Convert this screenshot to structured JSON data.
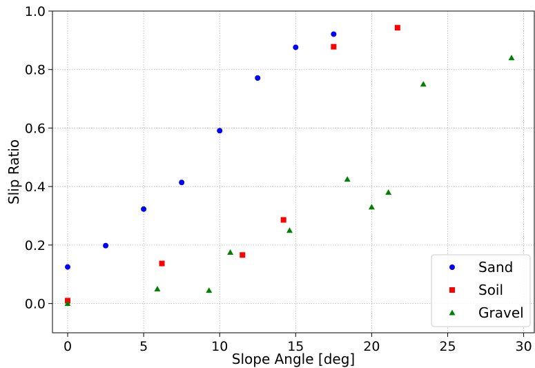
{
  "chart_data": {
    "type": "scatter",
    "title": "",
    "xlabel": "Slope Angle [deg]",
    "ylabel": "Slip Ratio",
    "xlim": [
      -1,
      30.7
    ],
    "ylim": [
      -0.1,
      1.0
    ],
    "xticks": [
      0,
      5,
      10,
      15,
      20,
      25,
      30
    ],
    "yticks": [
      0.0,
      0.2,
      0.4,
      0.6,
      0.8,
      1.0
    ],
    "xtick_labels": [
      "0",
      "5",
      "10",
      "15",
      "20",
      "25",
      "30"
    ],
    "ytick_labels": [
      "0.0",
      "0.2",
      "0.4",
      "0.6",
      "0.8",
      "1.0"
    ],
    "grid": true,
    "legend_position": "bottom-right",
    "series": [
      {
        "name": "Sand",
        "marker": "circle",
        "color": "#0000ff",
        "points": [
          {
            "x": 0,
            "y": 0.125
          },
          {
            "x": 2.5,
            "y": 0.198
          },
          {
            "x": 5,
            "y": 0.323
          },
          {
            "x": 7.5,
            "y": 0.414
          },
          {
            "x": 10,
            "y": 0.591
          },
          {
            "x": 12.5,
            "y": 0.771
          },
          {
            "x": 15,
            "y": 0.876
          },
          {
            "x": 17.5,
            "y": 0.921
          }
        ]
      },
      {
        "name": "Soil",
        "marker": "square",
        "color": "#ff0000",
        "points": [
          {
            "x": 0,
            "y": 0.01
          },
          {
            "x": 6.2,
            "y": 0.137
          },
          {
            "x": 11.5,
            "y": 0.166
          },
          {
            "x": 14.2,
            "y": 0.286
          },
          {
            "x": 17.5,
            "y": 0.878
          },
          {
            "x": 21.7,
            "y": 0.943
          }
        ]
      },
      {
        "name": "Gravel",
        "marker": "triangle",
        "color": "#008000",
        "points": [
          {
            "x": 0,
            "y": 0.0
          },
          {
            "x": 5.9,
            "y": 0.05
          },
          {
            "x": 9.3,
            "y": 0.045
          },
          {
            "x": 10.7,
            "y": 0.175
          },
          {
            "x": 14.6,
            "y": 0.25
          },
          {
            "x": 18.4,
            "y": 0.425
          },
          {
            "x": 20.0,
            "y": 0.33
          },
          {
            "x": 21.1,
            "y": 0.38
          },
          {
            "x": 23.4,
            "y": 0.75
          },
          {
            "x": 29.2,
            "y": 0.84
          }
        ]
      }
    ]
  }
}
